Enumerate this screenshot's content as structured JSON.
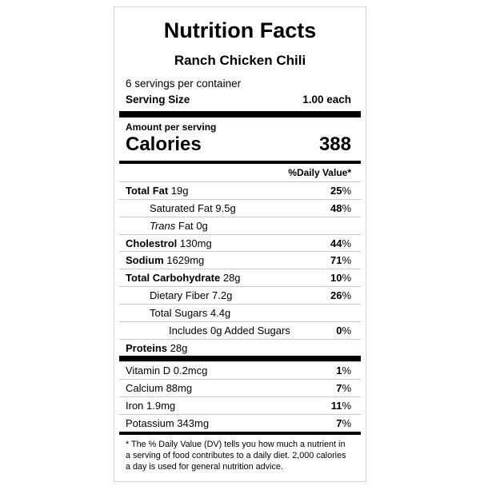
{
  "label": {
    "title": "Nutrition Facts",
    "product_name": "Ranch Chicken Chili",
    "servings_per_container": "6 servings per container",
    "serving_size_label": "Serving Size",
    "serving_size_value": "1.00 each",
    "amount_per_serving": "Amount per serving",
    "calories_label": "Calories",
    "calories_value": "388",
    "daily_value_header": "%Daily Value*",
    "nutrients": [
      {
        "name": "Total Fat",
        "amount": "19g",
        "dv": "25",
        "dv_unit": "%"
      },
      {
        "name": "Saturated Fat",
        "amount": "9.5g",
        "dv": "48",
        "dv_unit": "%"
      },
      {
        "name_italic": "Trans",
        "name": "Fat",
        "amount": "0g",
        "dv": "",
        "dv_unit": ""
      },
      {
        "name": "Cholestrol",
        "amount": "130mg",
        "dv": "44",
        "dv_unit": "%"
      },
      {
        "name": "Sodium",
        "amount": "1629mg",
        "dv": "71",
        "dv_unit": "%"
      },
      {
        "name": "Total Carbohydrate",
        "amount": "28g",
        "dv": "10",
        "dv_unit": "%"
      },
      {
        "name": "Dietary Fiber",
        "amount": "7.2g",
        "dv": "26",
        "dv_unit": "%"
      },
      {
        "name": "Total Sugars",
        "amount": "4.4g",
        "dv": "",
        "dv_unit": ""
      },
      {
        "name": "Includes 0g Added Sugars",
        "amount": "",
        "dv": "0",
        "dv_unit": "%"
      },
      {
        "name": "Proteins",
        "amount": "28g",
        "dv": "",
        "dv_unit": ""
      }
    ],
    "vitamins": [
      {
        "text": "Vitamin D 0.2mcg",
        "dv": "1",
        "dv_unit": "%"
      },
      {
        "text": "Calcium 88mg",
        "dv": "7",
        "dv_unit": "%"
      },
      {
        "text": "Iron 1.9mg",
        "dv": "11",
        "dv_unit": "%"
      },
      {
        "text": "Potassium 343mg",
        "dv": "7",
        "dv_unit": "%"
      }
    ],
    "footnote": "* The % Daily Value (DV) tells you how much a nutrient in a serving of food contributes to a daily diet. 2,000 calories a day is used for general nutrition advice."
  }
}
